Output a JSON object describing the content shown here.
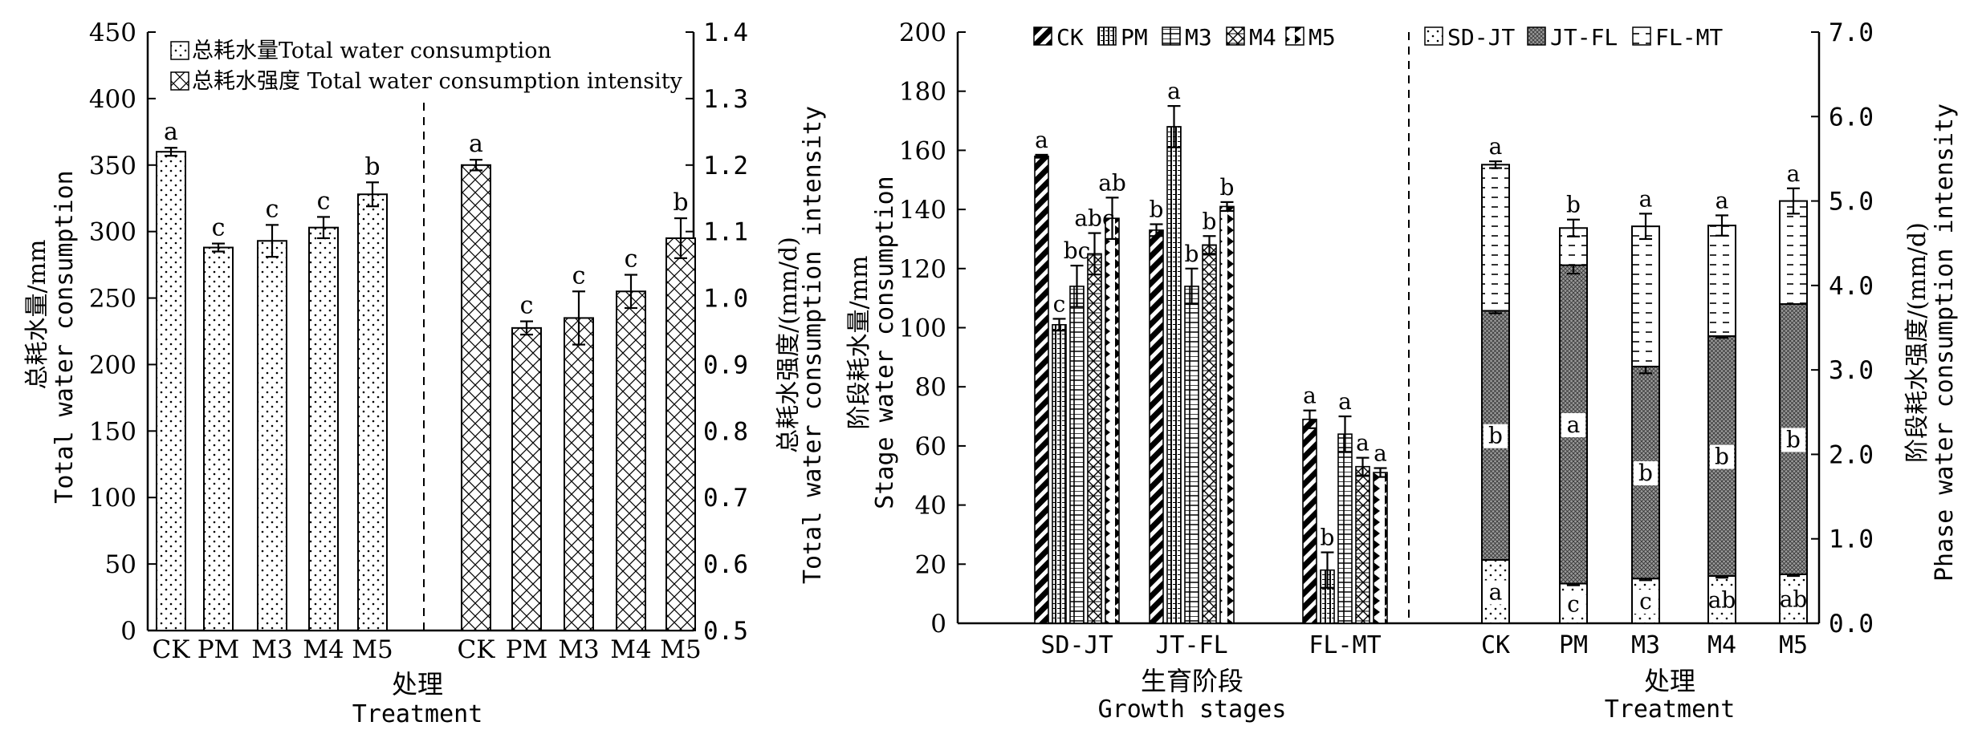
{
  "chart_data": [
    {
      "type": "bar",
      "legend": {
        "placement": "top-left",
        "items": [
          {
            "label": "总耗水量Total water consumption",
            "pattern": "dots"
          },
          {
            "label": "总耗水强度 Total water consumption intensity",
            "pattern": "diamond"
          }
        ]
      },
      "categories": [
        "CK",
        "PM",
        "M3",
        "M4",
        "M5"
      ],
      "series": [
        {
          "name": "总耗水量Total water consumption",
          "axis": "left",
          "values": [
            360,
            288,
            293,
            303,
            328
          ],
          "errors": [
            3,
            3,
            12,
            8,
            9
          ],
          "letters": [
            "a",
            "c",
            "c",
            "c",
            "b"
          ]
        },
        {
          "name": "总耗水强度 Total water consumption intensity",
          "axis": "right",
          "values": [
            1.2,
            0.955,
            0.97,
            1.01,
            1.09
          ],
          "errors": [
            0.008,
            0.01,
            0.04,
            0.025,
            0.03
          ],
          "letters": [
            "a",
            "c",
            "c",
            "c",
            "b"
          ]
        }
      ],
      "ylabel_left": [
        "总耗水量/mm",
        "Total water consumption"
      ],
      "ylabel_right": [
        "总耗水强度/(mm/d)",
        "Total water consumption intensity"
      ],
      "xlabel": [
        "处理",
        "Treatment"
      ],
      "ylim_left": [
        0,
        450
      ],
      "ylim_right": [
        0.5,
        1.4
      ],
      "yticks_left": [
        "0",
        "50",
        "100",
        "150",
        "200",
        "250",
        "300",
        "350",
        "400",
        "450"
      ],
      "yticks_right": [
        "0.5",
        "0.6",
        "0.7",
        "0.8",
        "0.9",
        "1.0",
        "1.1",
        "1.2",
        "1.3",
        "1.4"
      ],
      "grid": false
    },
    {
      "type": "bar",
      "legend": {
        "placement": "top",
        "items": [
          {
            "label": "CK",
            "pattern": "stripe"
          },
          {
            "label": "PM",
            "pattern": "vlines"
          },
          {
            "label": "M3",
            "pattern": "grid"
          },
          {
            "label": "M4",
            "pattern": "hatchx"
          },
          {
            "label": "M5",
            "pattern": "triangles"
          },
          {
            "label": "SD-JT",
            "pattern": "dots"
          },
          {
            "label": "JT-FL",
            "pattern": "dense"
          },
          {
            "label": "FL-MT",
            "pattern": "dash"
          }
        ]
      },
      "grouped": {
        "categories": [
          "SD-JT",
          "JT-FL",
          "FL-MT"
        ],
        "series": [
          {
            "name": "CK",
            "values": [
              158,
              133,
              69
            ],
            "errors": [
              0.5,
              2,
              3
            ],
            "letters": [
              "a",
              "b",
              "a"
            ]
          },
          {
            "name": "PM",
            "values": [
              101,
              168,
              18
            ],
            "errors": [
              2,
              7,
              6
            ],
            "letters": [
              "c",
              "a",
              "b"
            ]
          },
          {
            "name": "M3",
            "values": [
              114,
              114,
              64
            ],
            "errors": [
              7,
              6,
              6
            ],
            "letters": [
              "bc",
              "b",
              "a"
            ]
          },
          {
            "name": "M4",
            "values": [
              125,
              128,
              53
            ],
            "errors": [
              7,
              3,
              3
            ],
            "letters": [
              "abc",
              "b",
              "a"
            ]
          },
          {
            "name": "M5",
            "values": [
              137,
              141,
              51
            ],
            "errors": [
              7,
              1.5,
              1.5
            ],
            "letters": [
              "ab",
              "b",
              "a"
            ]
          }
        ],
        "ylabel": [
          "阶段耗水量/mm",
          "Stage water consumption"
        ],
        "xlabel": [
          "生育阶段",
          "Growth stages"
        ],
        "ylim": [
          0,
          200
        ],
        "yticks": [
          "0",
          "20",
          "40",
          "60",
          "80",
          "100",
          "120",
          "140",
          "160",
          "180",
          "200"
        ]
      },
      "stacked": {
        "categories": [
          "CK",
          "PM",
          "M3",
          "M4",
          "M5"
        ],
        "series": [
          {
            "name": "SD-JT",
            "values": [
              0.75,
              0.47,
              0.53,
              0.56,
              0.58
            ],
            "errors": [
              0,
              0.02,
              0.02,
              0.02,
              0.02
            ],
            "letters": [
              "a",
              "c",
              "c",
              "ab",
              "ab"
            ]
          },
          {
            "name": "JT-FL",
            "values": [
              2.95,
              3.77,
              2.51,
              2.84,
              3.2
            ],
            "errors": [
              0.03,
              0.1,
              0.08,
              0.02,
              0
            ],
            "letters": [
              "b",
              "a",
              "b",
              "b",
              "b"
            ]
          },
          {
            "name": "FL-MT",
            "values": [
              1.73,
              0.44,
              1.66,
              1.31,
              1.22
            ],
            "errors": [
              0.04,
              0.1,
              0.15,
              0.12,
              0.15
            ],
            "letters": [
              "a",
              "b",
              "a",
              "a",
              "a"
            ]
          }
        ],
        "ylabel": [
          "阶段耗水强度/(mm/d)",
          "Phase water consumption intensity"
        ],
        "xlabel": [
          "处理",
          "Treatment"
        ],
        "ylim": [
          0,
          7
        ],
        "yticks": [
          "0.0",
          "1.0",
          "2.0",
          "3.0",
          "4.0",
          "5.0",
          "6.0",
          "7.0"
        ]
      },
      "grid": false
    }
  ]
}
